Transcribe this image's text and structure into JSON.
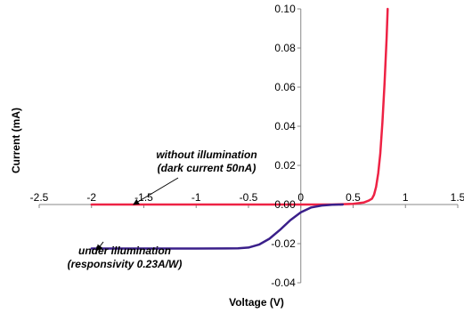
{
  "chart_data": {
    "type": "line",
    "title": "",
    "xlabel": "Voltage (V)",
    "ylabel": "Current (mA)",
    "xlim": [
      -2.5,
      1.5
    ],
    "ylim": [
      -0.04,
      0.1
    ],
    "x_ticks": [
      -2.5,
      -2,
      -1.5,
      -1,
      -0.5,
      0,
      0.5,
      1,
      1.5
    ],
    "x_tick_labels": [
      "-2.5",
      "-2",
      "-1.5",
      "-1",
      "-0.5",
      "0",
      "0.5",
      "1",
      "1.5"
    ],
    "y_ticks": [
      -0.04,
      -0.02,
      0.0,
      0.02,
      0.04,
      0.06,
      0.08,
      0.1
    ],
    "y_tick_labels": [
      "-0.04",
      "-0.02",
      "0.00",
      "0.02",
      "0.04",
      "0.06",
      "0.08",
      "0.10"
    ],
    "grid": false,
    "legend": "none",
    "series": [
      {
        "color": "#ee2244",
        "x": [
          -2.0,
          -1.5,
          -1.0,
          -0.5,
          0.0,
          0.3,
          0.5,
          0.6,
          0.65,
          0.68,
          0.7,
          0.72,
          0.74,
          0.76,
          0.78,
          0.8,
          0.82,
          0.83
        ],
        "y": [
          0.0,
          0.0,
          0.0,
          0.0,
          0.0,
          0.0,
          0.0003,
          0.001,
          0.002,
          0.003,
          0.005,
          0.009,
          0.016,
          0.026,
          0.042,
          0.062,
          0.085,
          0.1
        ]
      },
      {
        "color": "#3a1f8a",
        "x": [
          -2.0,
          -1.5,
          -1.0,
          -0.6,
          -0.5,
          -0.4,
          -0.3,
          -0.2,
          -0.1,
          0.0,
          0.1,
          0.2,
          0.3,
          0.4
        ],
        "y": [
          -0.0225,
          -0.0225,
          -0.0225,
          -0.0224,
          -0.022,
          -0.0205,
          -0.0175,
          -0.013,
          -0.008,
          -0.004,
          -0.0015,
          -0.0005,
          -0.0001,
          0.0
        ]
      }
    ],
    "annotations": [
      {
        "id": "dark",
        "lines": [
          "without illumination",
          "(dark current 50nA)"
        ],
        "arrow_to": [
          -1.6,
          0.0
        ]
      },
      {
        "id": "light",
        "lines": [
          "under illumination",
          "(responsivity 0.23A/W)"
        ],
        "arrow_to": [
          -1.95,
          -0.0235
        ]
      }
    ]
  }
}
